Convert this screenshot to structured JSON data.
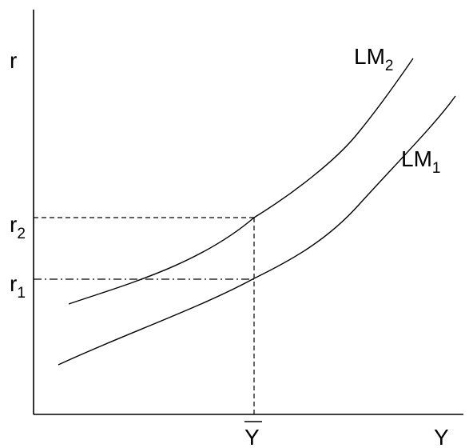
{
  "axes": {
    "y_label": "r",
    "x_label": "Y"
  },
  "curves": [
    {
      "id": "lm2",
      "label_main": "LM",
      "label_sub": "2"
    },
    {
      "id": "lm1",
      "label_main": "LM",
      "label_sub": "1"
    }
  ],
  "levels": {
    "r2": {
      "main": "r",
      "sub": "2"
    },
    "r1": {
      "main": "r",
      "sub": "1"
    },
    "ybar": "Y"
  },
  "colors": {
    "ink": "#000000",
    "background": "#ffffff"
  }
}
